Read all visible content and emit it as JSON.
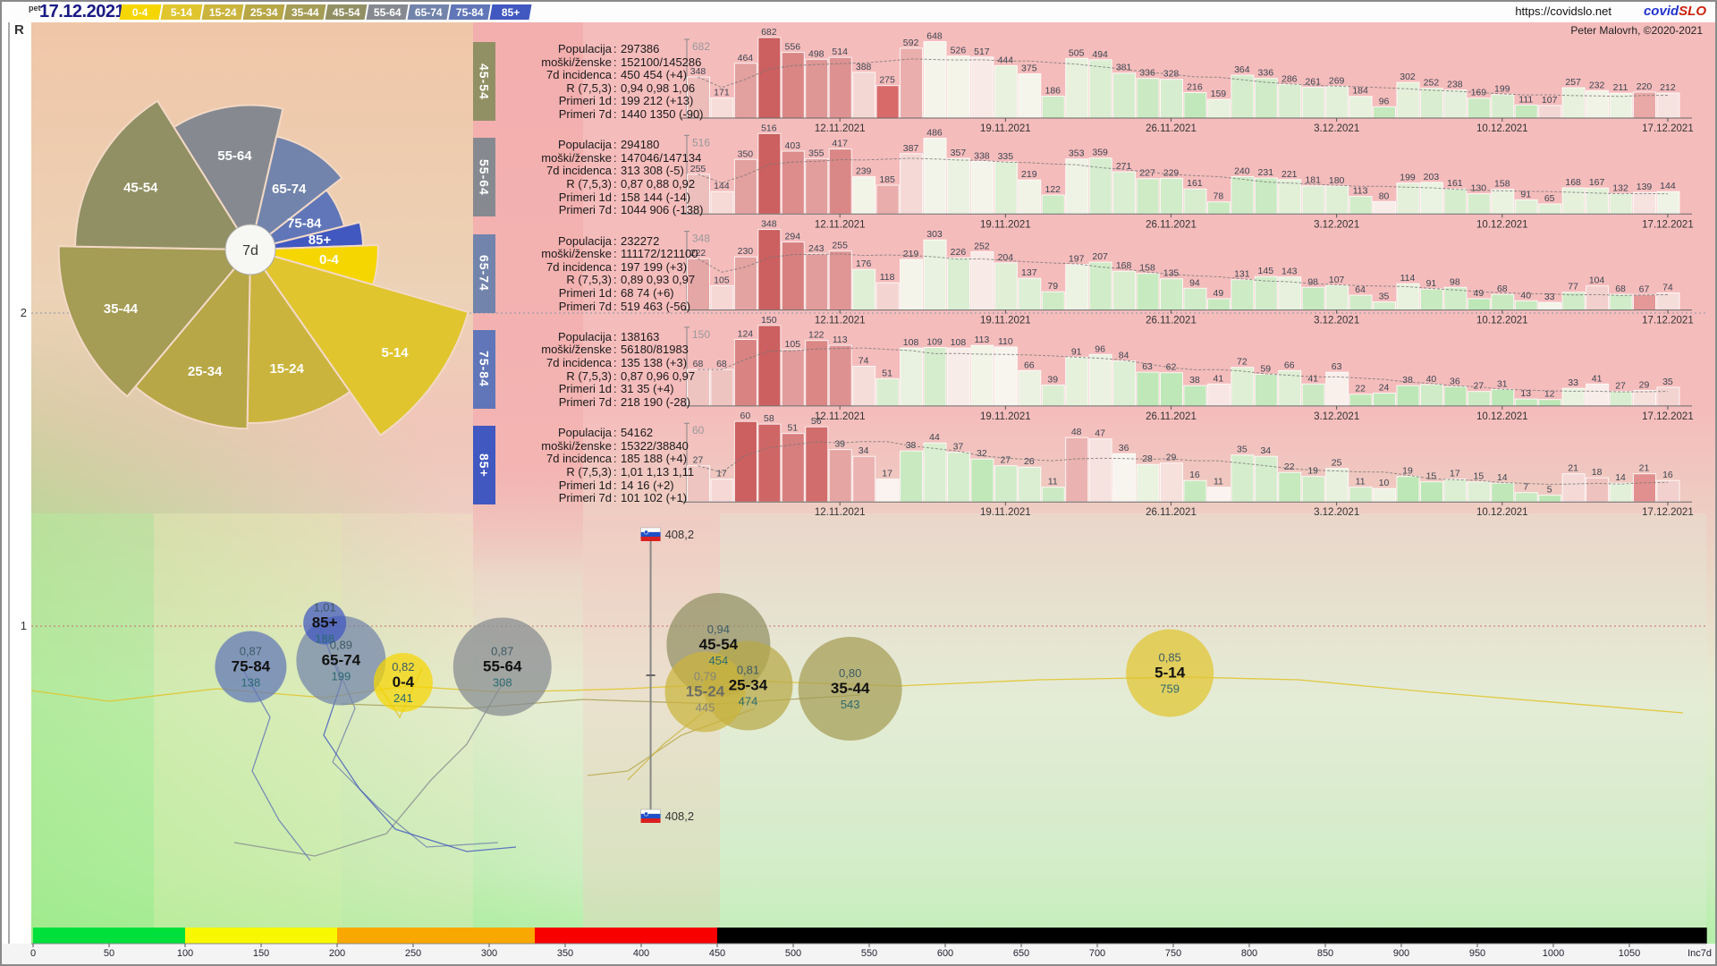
{
  "header": {
    "weekday": "pet",
    "date": "17.12.2021",
    "url": "https://covidslo.net",
    "brand_blue": "covid",
    "brand_red": "SLO",
    "author": "Peter Malovrh, ©2020-2021"
  },
  "age_groups": [
    {
      "id": "0-4",
      "color": "#f6d600"
    },
    {
      "id": "5-14",
      "color": "#e0c52f"
    },
    {
      "id": "15-24",
      "color": "#cbb43d"
    },
    {
      "id": "25-34",
      "color": "#b7a746"
    },
    {
      "id": "35-44",
      "color": "#a59c55"
    },
    {
      "id": "45-54",
      "color": "#919064"
    },
    {
      "id": "55-64",
      "color": "#868a90"
    },
    {
      "id": "65-74",
      "color": "#7284ab"
    },
    {
      "id": "75-84",
      "color": "#6076b8"
    },
    {
      "id": "85+",
      "color": "#4058c0"
    }
  ],
  "panels": [
    {
      "group": "45-54",
      "rows": [
        {
          "k": "Populacija",
          "v": "297386"
        },
        {
          "k": "moški/ženske",
          "v": "152100/145286"
        },
        {
          "k": "7d incidenca",
          "v": "450 454 (+4)"
        },
        {
          "k": "R (7,5,3)",
          "v": "0,94 0,98 1,06"
        },
        {
          "k": "Primeri 1d",
          "v": "199 212 (+13)"
        },
        {
          "k": "Primeri 7d",
          "v": "1440 1350 (-90)"
        }
      ]
    },
    {
      "group": "55-64",
      "rows": [
        {
          "k": "Populacija",
          "v": "294180"
        },
        {
          "k": "moški/ženske",
          "v": "147046/147134"
        },
        {
          "k": "7d incidenca",
          "v": "313 308 (-5)"
        },
        {
          "k": "R (7,5,3)",
          "v": "0,87 0,88 0,92"
        },
        {
          "k": "Primeri 1d",
          "v": "158 144 (-14)"
        },
        {
          "k": "Primeri 7d",
          "v": "1044 906 (-138)"
        }
      ]
    },
    {
      "group": "65-74",
      "rows": [
        {
          "k": "Populacija",
          "v": "232272"
        },
        {
          "k": "moški/ženske",
          "v": "111172/121100"
        },
        {
          "k": "7d incidenca",
          "v": "197 199 (+3)"
        },
        {
          "k": "R (7,5,3)",
          "v": "0,89 0,93 0,97"
        },
        {
          "k": "Primeri 1d",
          "v": "68 74 (+6)"
        },
        {
          "k": "Primeri 7d",
          "v": "519 463 (-56)"
        }
      ]
    },
    {
      "group": "75-84",
      "rows": [
        {
          "k": "Populacija",
          "v": "138163"
        },
        {
          "k": "moški/ženske",
          "v": "56180/81983"
        },
        {
          "k": "7d incidenca",
          "v": "135 138 (+3)"
        },
        {
          "k": "R (7,5,3)",
          "v": "0,87 0,96 0,97"
        },
        {
          "k": "Primeri 1d",
          "v": "31 35 (+4)"
        },
        {
          "k": "Primeri 7d",
          "v": "218 190 (-28)"
        }
      ]
    },
    {
      "group": "85+",
      "rows": [
        {
          "k": "Populacija",
          "v": "54162"
        },
        {
          "k": "moški/ženske",
          "v": "15322/38840"
        },
        {
          "k": "7d incidenca",
          "v": "185 188 (+4)"
        },
        {
          "k": "R (7,5,3)",
          "v": "1,01 1,13 1,11"
        },
        {
          "k": "Primeri 1d",
          "v": "14 16 (+2)"
        },
        {
          "k": "Primeri 7d",
          "v": "101 102 (+1)"
        }
      ]
    }
  ],
  "chart_data": {
    "dates": [
      "12.11.2021",
      "19.11.2021",
      "26.11.2021",
      "3.12.2021",
      "10.12.2021",
      "17.12.2021"
    ],
    "bar_rows": [
      {
        "type": "bar",
        "group": "45-54",
        "ymax": 682,
        "values": [
          348,
          171,
          464,
          682,
          556,
          498,
          514,
          388,
          275,
          592,
          648,
          526,
          517,
          444,
          375,
          186,
          505,
          494,
          381,
          336,
          328,
          216,
          159,
          364,
          336,
          286,
          261,
          269,
          184,
          96,
          302,
          252,
          238,
          169,
          199,
          111,
          107,
          257,
          232,
          211,
          220,
          212
        ]
      },
      {
        "type": "bar",
        "group": "55-64",
        "ymax": 516,
        "values": [
          255,
          144,
          350,
          516,
          403,
          355,
          417,
          239,
          185,
          387,
          486,
          357,
          338,
          335,
          219,
          122,
          353,
          359,
          271,
          227,
          229,
          161,
          78,
          240,
          231,
          221,
          181,
          180,
          113,
          80,
          199,
          203,
          161,
          130,
          158,
          91,
          65,
          168,
          167,
          132,
          139,
          144
        ]
      },
      {
        "type": "bar",
        "group": "65-74",
        "ymax": 348,
        "values": [
          222,
          105,
          230,
          348,
          294,
          243,
          255,
          176,
          118,
          219,
          303,
          226,
          252,
          204,
          137,
          79,
          197,
          207,
          168,
          158,
          135,
          94,
          49,
          131,
          145,
          143,
          98,
          107,
          64,
          35,
          114,
          91,
          98,
          49,
          68,
          40,
          33,
          77,
          104,
          68,
          67,
          74
        ]
      },
      {
        "type": "bar",
        "group": "75-84",
        "ymax": 150,
        "values": [
          68,
          68,
          124,
          150,
          105,
          122,
          113,
          74,
          51,
          108,
          109,
          108,
          113,
          110,
          66,
          39,
          91,
          96,
          84,
          63,
          62,
          38,
          41,
          72,
          59,
          66,
          41,
          63,
          22,
          24,
          38,
          40,
          36,
          27,
          31,
          13,
          12,
          33,
          41,
          27,
          29,
          35
        ]
      },
      {
        "type": "bar",
        "group": "85+",
        "ymax": 60,
        "values": [
          27,
          17,
          60,
          58,
          51,
          56,
          39,
          34,
          17,
          38,
          44,
          37,
          32,
          27,
          26,
          11,
          48,
          47,
          36,
          28,
          29,
          16,
          11,
          35,
          34,
          22,
          19,
          25,
          11,
          10,
          19,
          15,
          17,
          15,
          14,
          7,
          5,
          21,
          18,
          14,
          21,
          16
        ]
      }
    ],
    "bubble_plot": {
      "type": "scatter",
      "points": [
        {
          "group": "75-84",
          "R": 0.87,
          "r_text": "0,87",
          "inc": 138,
          "inc_text": "138",
          "radius": 40
        },
        {
          "group": "85+",
          "R": 1.01,
          "r_text": "1,01",
          "inc": 188,
          "inc_text": "188",
          "radius": 24
        },
        {
          "group": "65-74",
          "R": 0.89,
          "r_text": "0,89",
          "inc": 199,
          "inc_text": "199",
          "radius": 50
        },
        {
          "group": "0-4",
          "R": 0.82,
          "r_text": "0,82",
          "inc": 241,
          "inc_text": "241",
          "radius": 33
        },
        {
          "group": "55-64",
          "R": 0.87,
          "r_text": "0,87",
          "inc": 308,
          "inc_text": "308",
          "radius": 55
        },
        {
          "group": "15-24",
          "R": 0.79,
          "r_text": "0,79",
          "inc": 445,
          "inc_text": "445",
          "radius": 45,
          "dim": true
        },
        {
          "group": "45-54",
          "R": 0.94,
          "r_text": "0,94",
          "inc": 454,
          "inc_text": "454",
          "radius": 58
        },
        {
          "group": "25-34",
          "R": 0.81,
          "r_text": "0,81",
          "inc": 474,
          "inc_text": "474",
          "radius": 50
        },
        {
          "group": "35-44",
          "R": 0.8,
          "r_text": "0,80",
          "inc": 543,
          "inc_text": "543",
          "radius": 58
        },
        {
          "group": "5-14",
          "R": 0.85,
          "r_text": "0,85",
          "inc": 759,
          "inc_text": "759",
          "radius": 49
        }
      ]
    },
    "pie": {
      "type": "pie",
      "center_label": "7d",
      "slices": [
        {
          "group": "55-64",
          "inc": 308
        },
        {
          "group": "65-74",
          "inc": 199
        },
        {
          "group": "75-84",
          "inc": 138
        },
        {
          "group": "85+",
          "inc": 188
        },
        {
          "group": "0-4",
          "inc": 241
        },
        {
          "group": "5-14",
          "inc": 759
        },
        {
          "group": "15-24",
          "inc": 445
        },
        {
          "group": "25-34",
          "inc": 474
        },
        {
          "group": "35-44",
          "inc": 543
        },
        {
          "group": "45-54",
          "inc": 454
        }
      ]
    },
    "marker": {
      "label": "408,2",
      "value": 408.2
    }
  },
  "yaxis": {
    "label": "R",
    "gridlines": [
      {
        "v": 2,
        "label": "2"
      },
      {
        "v": 1,
        "label": "1"
      }
    ]
  },
  "xaxis": {
    "label": "Inc7d",
    "tick_step": 50,
    "tick_max": 1050,
    "bands": [
      {
        "from": 0,
        "to": 100,
        "color": "#00e03c"
      },
      {
        "from": 100,
        "to": 200,
        "color": "#f8f800"
      },
      {
        "from": 200,
        "to": 330,
        "color": "#f8a800"
      },
      {
        "from": 330,
        "to": 450,
        "color": "#f80000"
      },
      {
        "from": 450,
        "to": 1101,
        "color": "#000000"
      }
    ]
  }
}
